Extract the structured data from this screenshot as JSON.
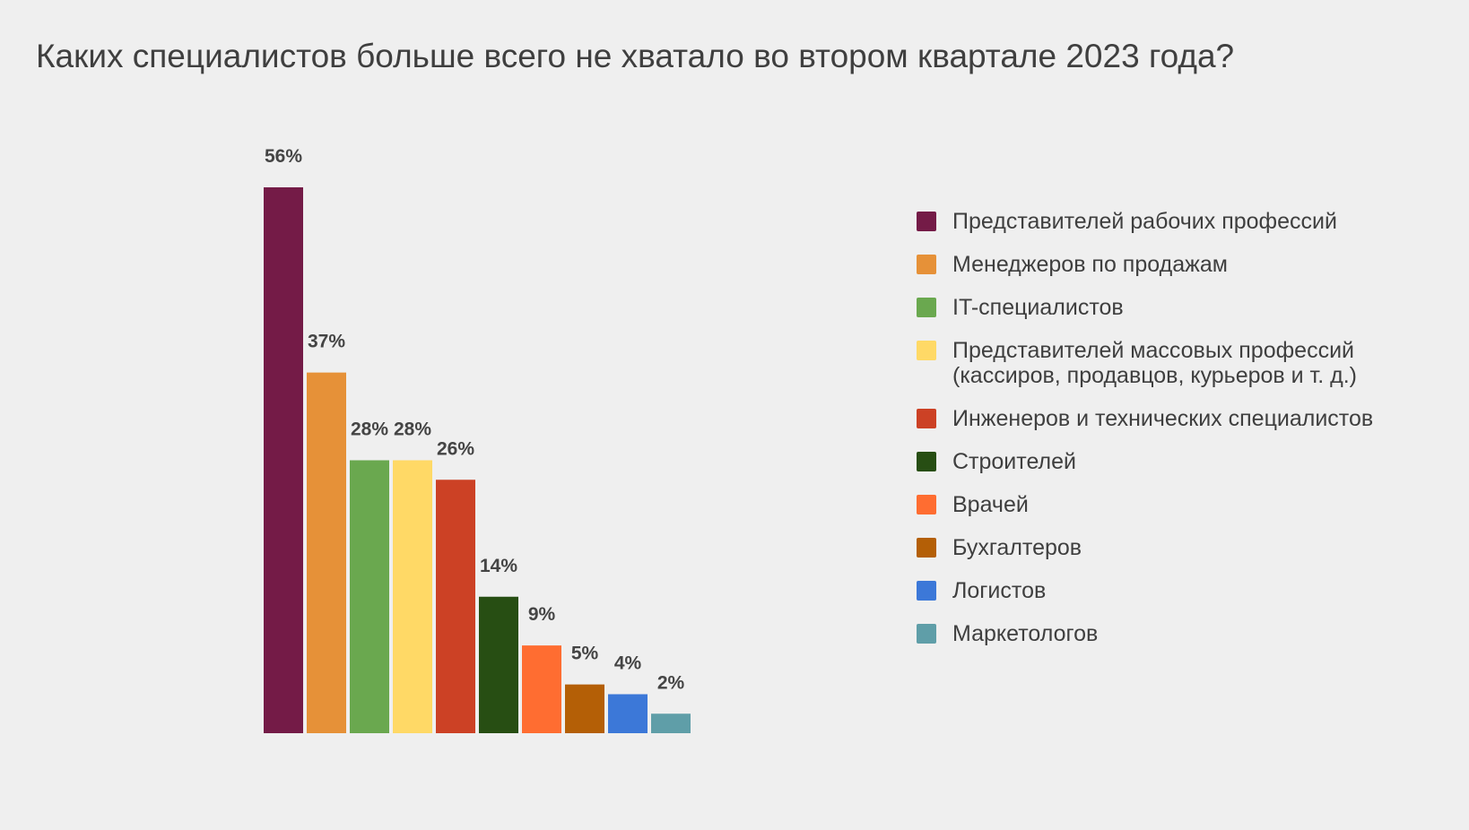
{
  "chart_data": {
    "type": "bar",
    "title": "Каких специалистов больше всего не хватало во втором квартале 2023 года?",
    "xlabel": "",
    "ylabel": "",
    "ylim": [
      0,
      56
    ],
    "grid": false,
    "legend_position": "right",
    "categories": [
      "Представителей рабочих профессий",
      "Менеджеров по продажам",
      "IT-специалистов",
      "Представителей массовых профессий (кассиров, продавцов, курьеров и т. д.)",
      "Инженеров и технических специалистов",
      "Строителей",
      "Врачей",
      "Бухгалтеров",
      "Логистов",
      "Маркетологов"
    ],
    "values": [
      56,
      37,
      28,
      28,
      26,
      14,
      9,
      5,
      4,
      2
    ],
    "data_labels": [
      "56%",
      "37%",
      "28%",
      "28%",
      "26%",
      "14%",
      "9%",
      "5%",
      "4%",
      "2%"
    ],
    "colors": [
      "#741b47",
      "#e69138",
      "#6aa84f",
      "#ffd966",
      "#cc4125",
      "#274e13",
      "#ff6d31",
      "#b45f06",
      "#3c78d8",
      "#5f9ea8"
    ]
  }
}
